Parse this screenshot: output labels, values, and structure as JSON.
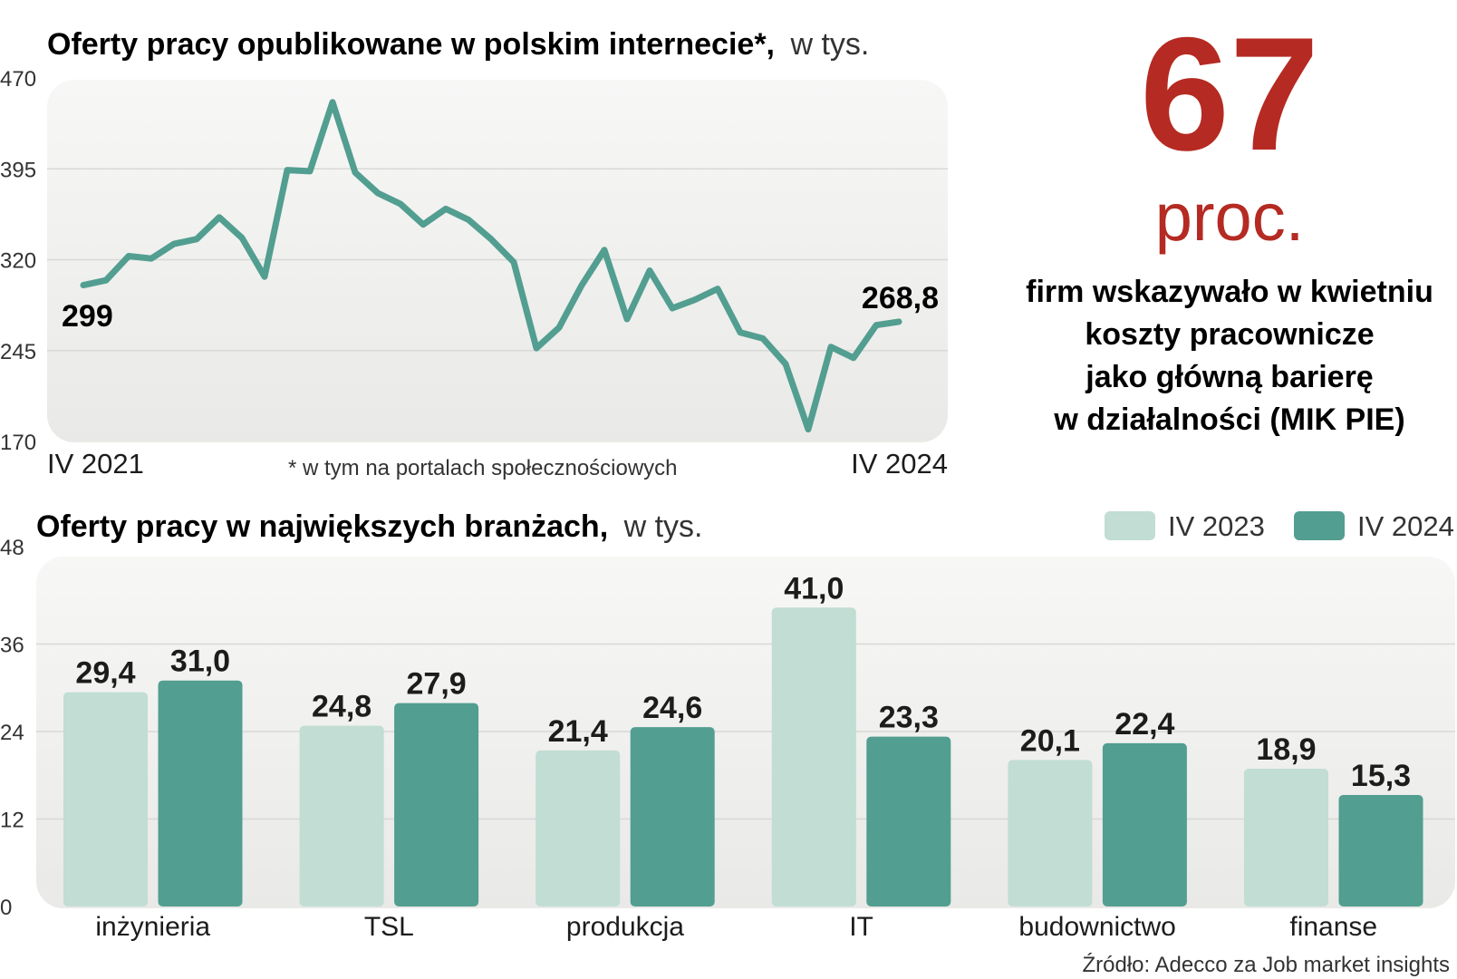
{
  "chart_data": [
    {
      "type": "line",
      "title": "Oferty pracy opublikowane w polskim internecie*,",
      "title_unit": "w tys.",
      "footnote": "* w tym na portalach społecznościowych",
      "ylim": [
        170,
        470
      ],
      "yticks": [
        "470",
        "395",
        "320",
        "245",
        "170"
      ],
      "x_start_label": "IV 2021",
      "x_end_label": "IV 2024",
      "start_value_label": "299",
      "end_value_label": "268,8",
      "values": [
        299,
        303,
        323,
        321,
        333,
        337,
        355,
        338,
        306,
        394,
        393,
        450,
        392,
        375,
        366,
        349,
        362,
        353,
        337,
        318,
        247,
        264,
        299,
        328,
        271,
        311,
        280,
        287,
        296,
        260,
        255,
        234,
        180,
        248,
        239,
        266,
        268.8
      ],
      "color": "#529e90"
    },
    {
      "type": "bar",
      "title": "Oferty pracy w największych branżach,",
      "title_unit": "w tys.",
      "ylim": [
        0,
        48
      ],
      "yticks": [
        "48",
        "36",
        "24",
        "12",
        "0"
      ],
      "categories": [
        "inżynieria",
        "TSL",
        "produkcja",
        "IT",
        "budownictwo",
        "finanse"
      ],
      "series": [
        {
          "name": "IV 2023",
          "color": "#c1ddd4",
          "values": [
            29.4,
            24.8,
            21.4,
            41.0,
            20.1,
            18.9
          ],
          "labels": [
            "29,4",
            "24,8",
            "21,4",
            "41,0",
            "20,1",
            "18,9"
          ]
        },
        {
          "name": "IV 2024",
          "color": "#529e90",
          "values": [
            31.0,
            27.9,
            24.6,
            23.3,
            22.4,
            15.3
          ],
          "labels": [
            "31,0",
            "27,9",
            "24,6",
            "23,3",
            "22,4",
            "15,3"
          ]
        }
      ]
    }
  ],
  "stat": {
    "number": "67",
    "unit": "proc.",
    "lines": [
      "firm wskazywało w kwietniu",
      "koszty pracownicze",
      "jako główną barierę",
      "w działalności (MIK PIE)"
    ],
    "color": "#b52a22"
  },
  "source": "Źródło: Adecco za Job market insights"
}
